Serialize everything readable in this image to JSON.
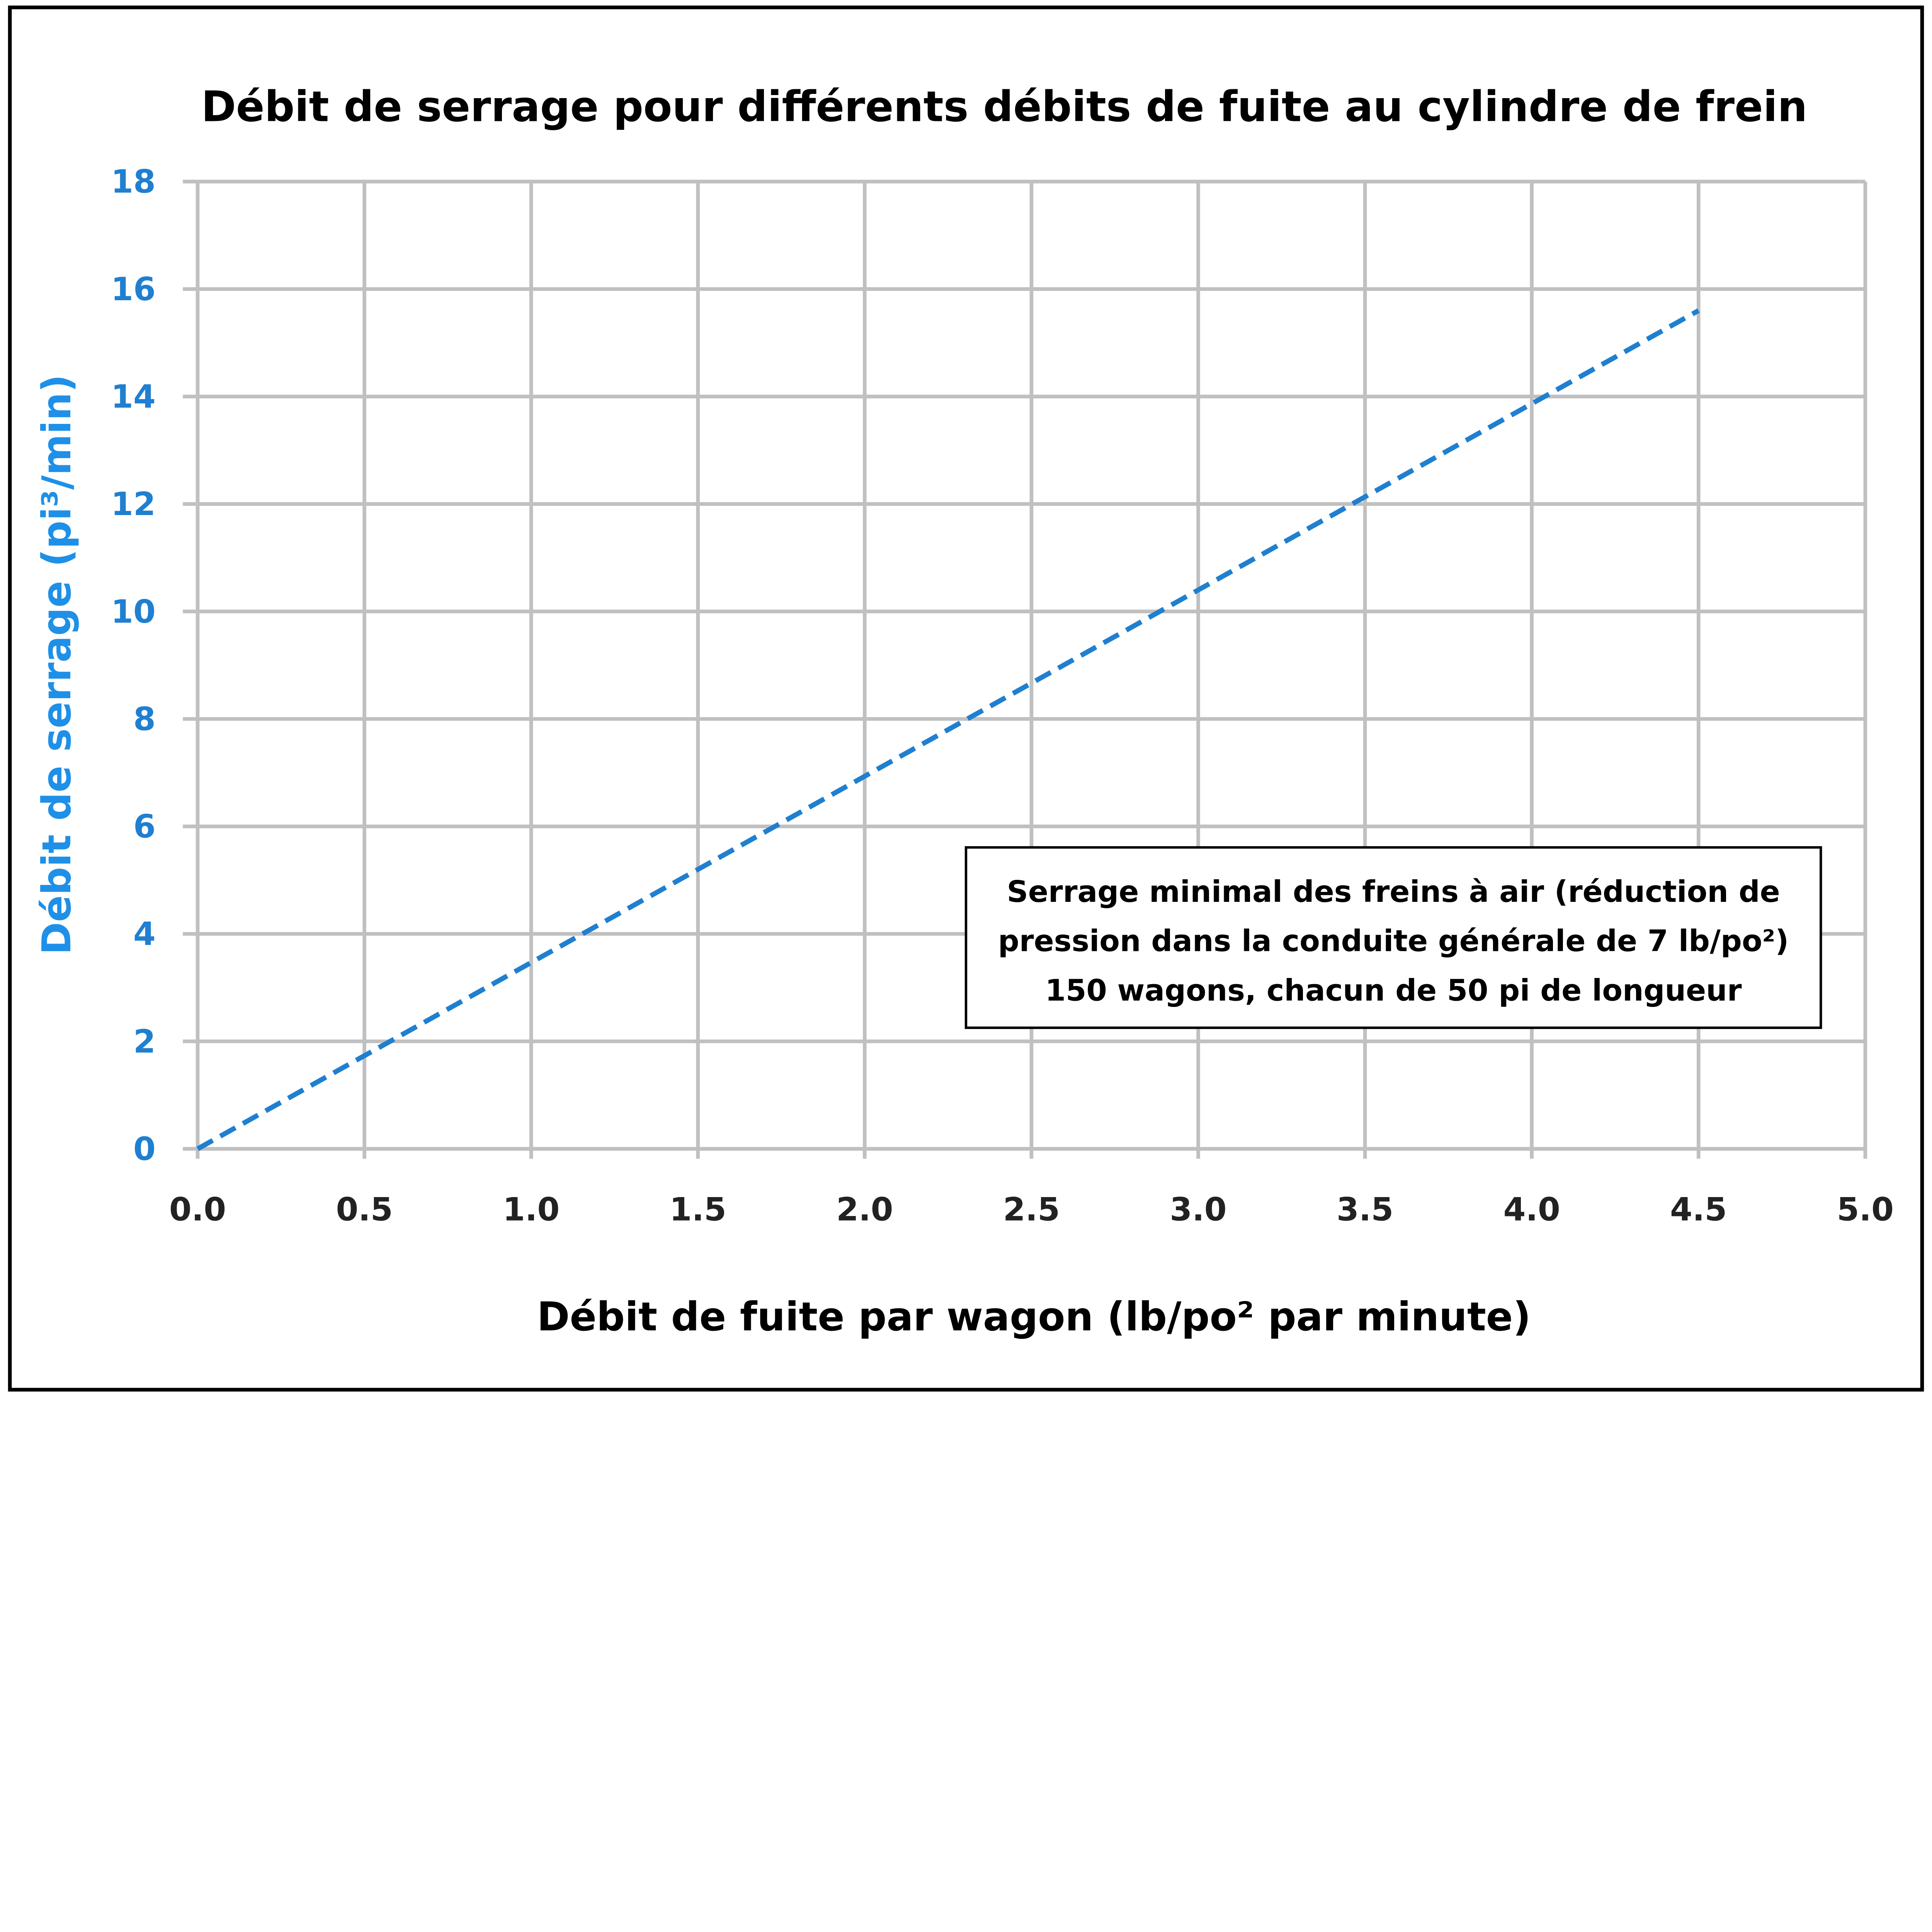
{
  "chart_data": {
    "type": "line",
    "title": "Débit de serrage pour différents débits de fuite au cylindre de frein",
    "xlabel": "Débit de fuite par wagon (lb/po² par minute)",
    "ylabel": "Débit de serrage (pi³/min)",
    "xlim": [
      0,
      5
    ],
    "ylim": [
      0,
      18
    ],
    "xticks": [
      "0.0",
      "0.5",
      "1.0",
      "1.5",
      "2.0",
      "2.5",
      "3.0",
      "3.5",
      "4.0",
      "4.5",
      "5.0"
    ],
    "yticks": [
      "0",
      "2",
      "4",
      "6",
      "8",
      "10",
      "12",
      "14",
      "16",
      "18"
    ],
    "grid": true,
    "series": [
      {
        "name": "Débit de serrage",
        "style": "dashed",
        "color": "#1f7fd0",
        "x": [
          0,
          4.5
        ],
        "y": [
          0,
          15.6
        ]
      }
    ],
    "annotation": {
      "lines": [
        "Serrage minimal des freins à air (réduction de",
        "pression dans la conduite générale de 7 lb/po²)",
        "150 wagons, chacun de 50 pi de longueur"
      ],
      "placement": "lower-right"
    }
  }
}
